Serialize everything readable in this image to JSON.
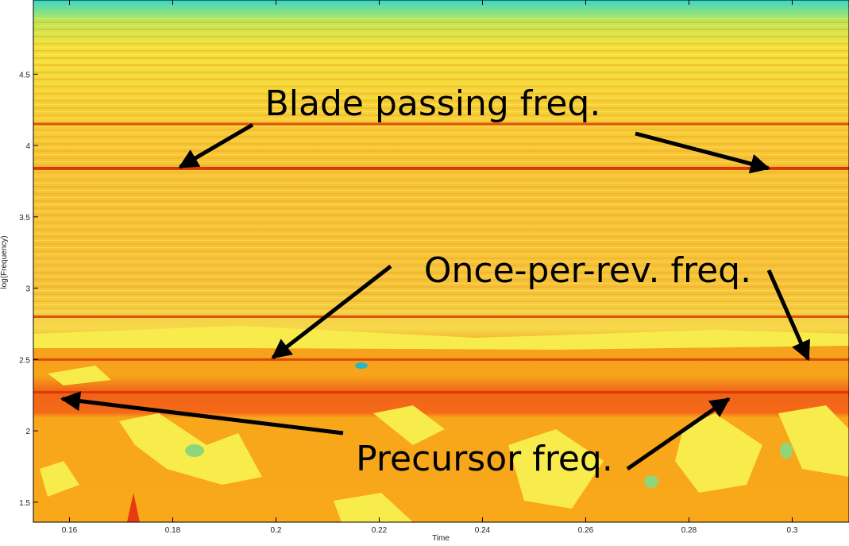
{
  "chart_data": {
    "type": "contour",
    "xlabel": "Time",
    "ylabel": "log(Frequency)",
    "xlim": [
      0.153,
      0.311
    ],
    "ylim": [
      1.36,
      5.02
    ],
    "xticks": [
      0.16,
      0.18,
      0.2,
      0.22,
      0.24,
      0.26,
      0.28,
      0.3
    ],
    "yticks": [
      1.5,
      2,
      2.5,
      3,
      3.5,
      4,
      4.5
    ],
    "ridges": [
      4.15,
      3.84,
      2.8,
      2.5,
      2.27
    ],
    "ridge_color": "#d42a00",
    "annotations": [
      {
        "text": "Blade passing freq.",
        "targets": [
          {
            "x": 0.1814,
            "y": 3.849
          },
          {
            "x": 0.2954,
            "y": 3.84
          }
        ]
      },
      {
        "text": "Once-per-rev. freq.",
        "targets": [
          {
            "x": 0.1994,
            "y": 2.513
          },
          {
            "x": 0.3031,
            "y": 2.502
          }
        ]
      },
      {
        "text": "Precursor freq.",
        "targets": [
          {
            "x": 0.1586,
            "y": 2.224
          },
          {
            "x": 0.2877,
            "y": 2.224
          }
        ]
      }
    ]
  }
}
